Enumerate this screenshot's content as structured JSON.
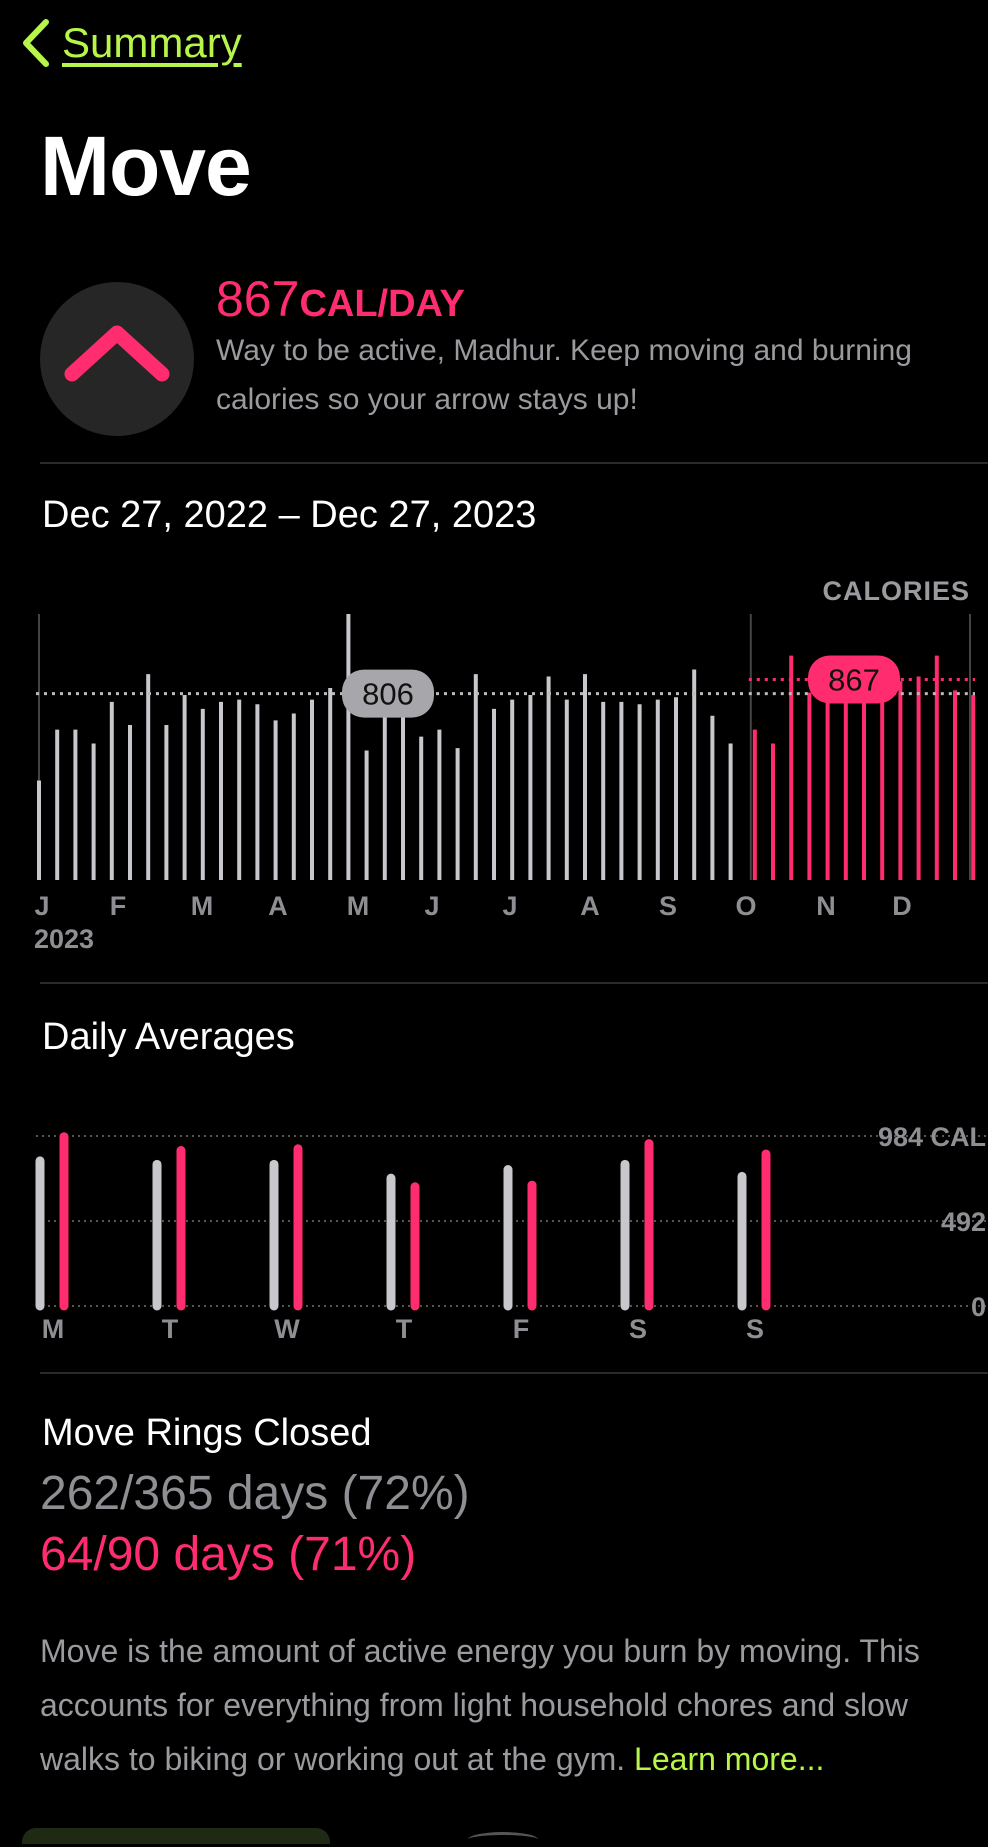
{
  "nav": {
    "back_label": "Summary"
  },
  "page": {
    "title": "Move"
  },
  "trend": {
    "value": "867",
    "unit": "CAL/DAY",
    "message": "Way to be active, Madhur. Keep moving and burning calories so your arrow stays up!",
    "direction": "up",
    "color": "#ff2d6f"
  },
  "range": {
    "label": "Dec 27, 2022 – Dec 27, 2023"
  },
  "chart_data": [
    {
      "type": "bar",
      "unit_label": "CALORIES",
      "month_labels": [
        "J",
        "F",
        "M",
        "A",
        "M",
        "J",
        "J",
        "A",
        "S",
        "O",
        "N",
        "D"
      ],
      "year_label": "2023",
      "ylim": [
        0,
        1150
      ],
      "series": [
        {
          "values": [
            430,
            650,
            650,
            590,
            770,
            670,
            890,
            670,
            800,
            740,
            770,
            780,
            760,
            690,
            720,
            780,
            830,
            1150,
            560,
            770,
            740,
            620,
            650,
            570,
            890,
            740,
            780,
            800,
            880,
            780,
            890,
            770,
            770,
            760,
            780,
            790,
            910,
            710,
            590
          ]
        },
        {
          "values": [
            650,
            590,
            970,
            810,
            940,
            830,
            900,
            930,
            860,
            880,
            970,
            820,
            800,
            860,
            1050,
            850,
            890,
            820,
            870
          ]
        }
      ],
      "split_after_index": 38,
      "average_labels": [
        {
          "value": 806,
          "color": "#a7a7ab"
        },
        {
          "value": 867,
          "color": "#ff2d6f"
        }
      ]
    },
    {
      "type": "bar",
      "title": "Daily Averages",
      "categories": [
        "M",
        "T",
        "W",
        "T",
        "F",
        "S",
        "S"
      ],
      "y_tick_labels": [
        "984 CAL",
        "492",
        "0"
      ],
      "ylim": [
        0,
        984
      ],
      "series": [
        {
          "values": [
            840,
            820,
            820,
            740,
            790,
            820,
            750
          ]
        },
        {
          "values": [
            980,
            900,
            910,
            690,
            700,
            940,
            880
          ]
        }
      ]
    }
  ],
  "rings": {
    "title": "Move Rings Closed",
    "year_stat": "262/365 days (72%)",
    "recent_stat": "64/90 days (71%)"
  },
  "description": {
    "text": "Move is the amount of active energy you burn by moving. This accounts for everything from light household chores and slow walks to biking or working out at the gym. ",
    "link": "Learn more..."
  },
  "colors": {
    "accent": "#b7f54a",
    "move": "#ff2d6f",
    "gray_bar": "#c7c7cc"
  }
}
